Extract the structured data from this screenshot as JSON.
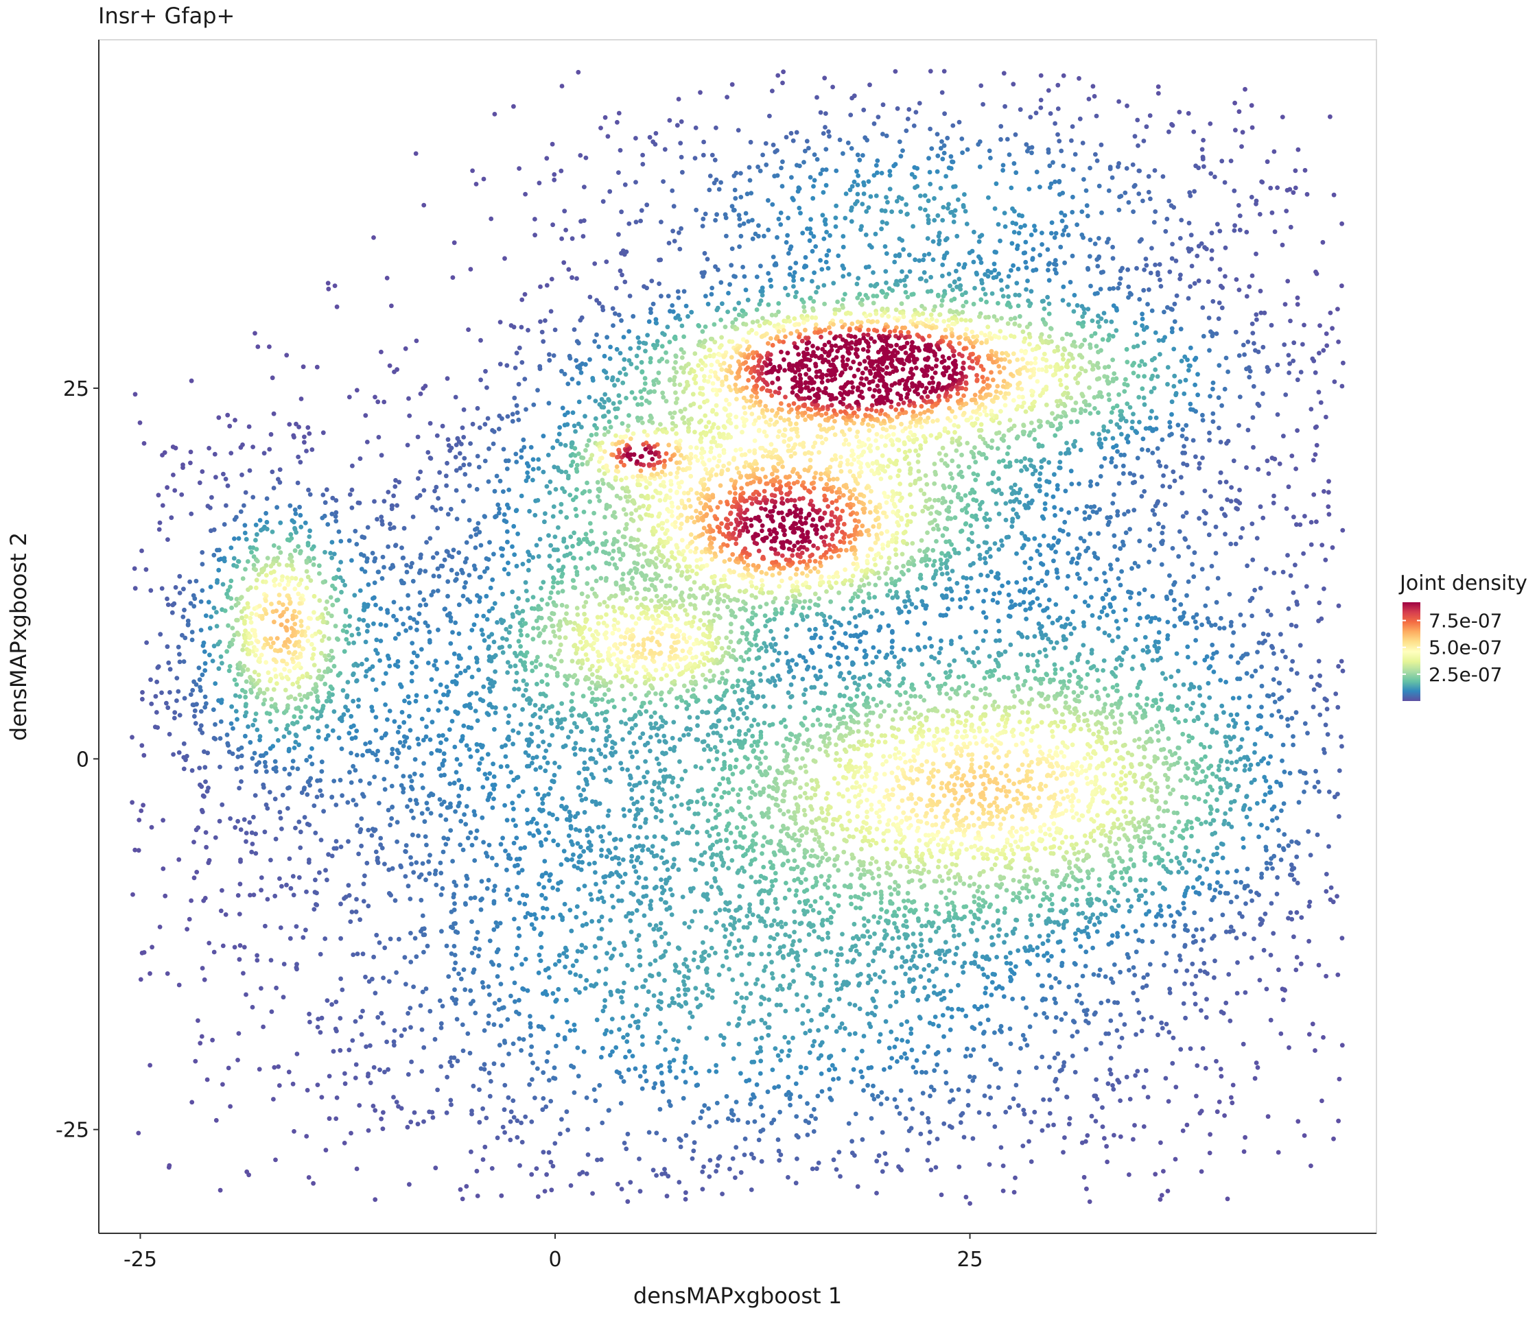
{
  "chart_data": {
    "type": "scatter",
    "title": "Insr+ Gfap+",
    "xlabel": "densMAPxgboost 1",
    "ylabel": "densMAPxgboost 2",
    "xlim": [
      -27.5,
      49.5
    ],
    "ylim": [
      -32,
      48.5
    ],
    "xticks": [
      -25,
      0,
      25
    ],
    "yticks": [
      -25,
      0,
      25
    ],
    "grid": false,
    "color_by": "Joint density",
    "colorscale": {
      "name": "Spectral (reversed)",
      "colors": [
        "#5E4FA2",
        "#3288BD",
        "#66C2A5",
        "#ABDDA4",
        "#E6F598",
        "#FFFFBF",
        "#FEE08B",
        "#FDAE61",
        "#F46D43",
        "#D53E4F",
        "#9E0142"
      ],
      "limits": [
        0,
        9.2e-07
      ]
    },
    "legend": {
      "title": "Joint density",
      "position": "right",
      "breaks": [
        2.5e-07,
        5e-07,
        7.5e-07
      ],
      "labels": [
        "2.5e-07",
        "5.0e-07",
        "7.5e-07"
      ]
    },
    "clusters": [
      {
        "center": [
          18.0,
          26.5
        ],
        "spread": [
          4.5,
          1.8
        ],
        "density": 9e-07
      },
      {
        "center": [
          21.0,
          26.0
        ],
        "spread": [
          9.0,
          3.0
        ],
        "density": 6e-07
      },
      {
        "center": [
          5.0,
          20.5
        ],
        "spread": [
          1.6,
          0.9
        ],
        "density": 7.4e-07
      },
      {
        "center": [
          14.0,
          15.0
        ],
        "spread": [
          4.0,
          2.5
        ],
        "density": 6.3e-07
      },
      {
        "center": [
          13.0,
          18.0
        ],
        "spread": [
          8.0,
          4.0
        ],
        "density": 4.6e-07
      },
      {
        "center": [
          -16.5,
          9.0
        ],
        "spread": [
          2.0,
          3.5
        ],
        "density": 5.3e-07
      },
      {
        "center": [
          7.0,
          7.5
        ],
        "spread": [
          3.0,
          2.0
        ],
        "density": 3.9e-07
      },
      {
        "center": [
          2.0,
          8.5
        ],
        "spread": [
          3.0,
          3.0
        ],
        "density": 2.2e-07
      },
      {
        "center": [
          25.0,
          -2.0
        ],
        "spread": [
          8.5,
          4.5
        ],
        "density": 5.1e-07
      },
      {
        "center": [
          12.0,
          -15.0
        ],
        "spread": [
          13.0,
          7.0
        ],
        "density": 1.4e-07
      },
      {
        "center": [
          33.0,
          4.0
        ],
        "spread": [
          8.0,
          10.0
        ],
        "density": 1e-07
      },
      {
        "center": [
          22.0,
          37.0
        ],
        "spread": [
          10.0,
          4.0
        ],
        "density": 1.2e-07
      },
      {
        "center": [
          -16.0,
          8.0
        ],
        "spread": [
          5.0,
          6.0
        ],
        "density": 8e-08
      },
      {
        "center": [
          0.0,
          3.0
        ],
        "spread": [
          10.0,
          8.0
        ],
        "density": 1e-07
      }
    ]
  }
}
